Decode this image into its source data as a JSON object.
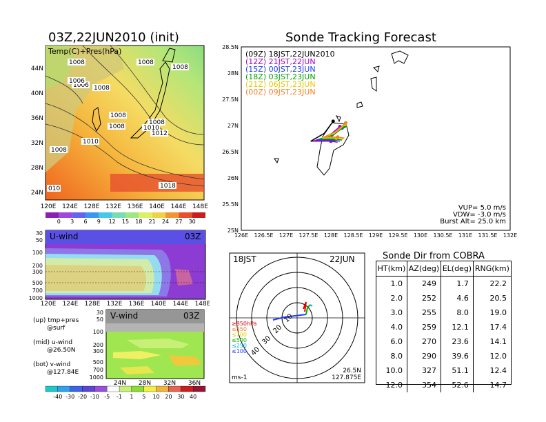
{
  "left_title": "03Z,22JUN2010 (init)",
  "right_title": "Sonde Tracking Forecast",
  "map": {
    "label": "Temp(C)+Pres(hPa)",
    "lat_ticks": [
      "44N",
      "40N",
      "36N",
      "32N",
      "28N",
      "24N"
    ],
    "lon_ticks": [
      "120E",
      "124E",
      "128E",
      "132E",
      "136E",
      "140E",
      "144E",
      "148E"
    ],
    "pressure_labels": [
      "1008",
      "1006",
      "1008",
      "1008",
      "1008",
      "1006",
      "1008",
      "1008",
      "1008",
      "1010",
      "1012",
      "1010",
      "1008",
      "1018",
      "010"
    ],
    "colorbar_ticks": [
      "0",
      "3",
      "6",
      "9",
      "12",
      "15",
      "18",
      "21",
      "24",
      "27",
      "30"
    ]
  },
  "uwind": {
    "label": "U-wind",
    "time": "03Z",
    "p_ticks": [
      "30",
      "50",
      "100",
      "200",
      "300",
      "500",
      "700",
      "1000"
    ],
    "lon_ticks": [
      "120E",
      "124E",
      "128E",
      "132E",
      "136E",
      "140E",
      "144E",
      "148E"
    ]
  },
  "vwind": {
    "label": "V-wind",
    "time": "03Z",
    "p_ticks": [
      "30",
      "50",
      "100",
      "200",
      "300",
      "500",
      "700",
      "1000"
    ],
    "lat_ticks": [
      "24N",
      "28N",
      "32N",
      "36N"
    ]
  },
  "notes": {
    "up": "(up) tmp+pres\n       @surf",
    "mid": "(mid) u-wind\n       @26.50N",
    "bot": "(bot) v-wind\n       @127.84E"
  },
  "wind_colorbar_ticks": [
    "-40",
    "-30",
    "-20",
    "-10",
    "-5",
    "-1",
    "1",
    "5",
    "10",
    "20",
    "30",
    "40"
  ],
  "track": {
    "lat_ticks": [
      "28.5N",
      "28N",
      "27.5N",
      "27N",
      "26.5N",
      "26N",
      "25.5N",
      "25N"
    ],
    "lon_ticks": [
      "126E",
      "126.5E",
      "127E",
      "127.5E",
      "128E",
      "128.5E",
      "129E",
      "129.5E",
      "130E",
      "130.5E",
      "131E",
      "131.5E",
      "132E"
    ],
    "legend": [
      {
        "text": "(09Z)  18JST,22JUN2010",
        "color": "#000000"
      },
      {
        "text": "(12Z)  21JST,22JUN",
        "color": "#a000c8"
      },
      {
        "text": "(15Z)  00JST,23JUN",
        "color": "#1e3cff"
      },
      {
        "text": "(18Z)  03JST,23JUN",
        "color": "#00a000"
      },
      {
        "text": "(21Z)  06JST,23JUN",
        "color": "#e6c800"
      },
      {
        "text": "(00Z)  09JST,23JUN",
        "color": "#f08228"
      }
    ],
    "params": [
      "VUP=  5.0  m/s",
      "VDW= -3.0  m/s",
      "Burst Alt=  25.0  km"
    ]
  },
  "polar": {
    "time_label": "18JST",
    "date_label": "22JUN",
    "unit": "ms-1",
    "location": [
      "26.5N",
      "127.875E"
    ],
    "ring_labels": [
      "10",
      "20",
      "30",
      "40"
    ],
    "legend": [
      {
        "text": "≥850hPa",
        "color": "#e60000"
      },
      {
        "text": "≤850",
        "color": "#f08228"
      },
      {
        "text": "≤700",
        "color": "#e6c800"
      },
      {
        "text": "≤500",
        "color": "#00b400"
      },
      {
        "text": "≤250",
        "color": "#00b4e6"
      },
      {
        "text": "≤100",
        "color": "#1e3cff"
      }
    ]
  },
  "table": {
    "title": "Sonde Dir from COBRA",
    "headers": [
      "HT(km)",
      "AZ(deg)",
      "EL(deg)",
      "RNG(km)"
    ],
    "rows": [
      [
        "1.0",
        "249",
        "1.7",
        "22.2"
      ],
      [
        "2.0",
        "252",
        "4.6",
        "20.5"
      ],
      [
        "3.0",
        "255",
        "8.0",
        "19.0"
      ],
      [
        "4.0",
        "259",
        "12.1",
        "17.4"
      ],
      [
        "6.0",
        "270",
        "23.6",
        "14.1"
      ],
      [
        "8.0",
        "290",
        "39.6",
        "12.0"
      ],
      [
        "10.0",
        "327",
        "51.1",
        "12.4"
      ],
      [
        "12.0",
        "354",
        "52.6",
        "14.7"
      ]
    ]
  },
  "chart_data": [
    {
      "type": "line",
      "series": [
        {
          "name": "(09Z)  18JST,22JUN2010",
          "x": [
            128.05,
            127.85,
            127.55,
            128.0,
            128.1
          ],
          "y": [
            27.08,
            26.85,
            26.7,
            26.72,
            26.7
          ]
        },
        {
          "name": "(12Z)  21JST,22JUN",
          "x": [
            128.2,
            127.95,
            127.6,
            128.0,
            128.15
          ],
          "y": [
            26.98,
            26.8,
            26.7,
            26.7,
            26.68
          ]
        },
        {
          "name": "(15Z)  00JST,23JUN",
          "x": [
            128.25,
            128.0,
            127.7,
            128.05,
            128.2
          ],
          "y": [
            26.95,
            26.78,
            26.72,
            26.72,
            26.7
          ]
        },
        {
          "name": "(18Z)  03JST,23JUN",
          "x": [
            128.3,
            128.05,
            127.75,
            128.1,
            128.25
          ],
          "y": [
            26.98,
            26.82,
            26.74,
            26.74,
            26.72
          ]
        },
        {
          "name": "(21Z)  06JST,23JUN",
          "x": [
            128.32,
            128.08,
            127.8,
            128.12,
            128.28
          ],
          "y": [
            27.02,
            26.85,
            26.76,
            26.76,
            26.74
          ]
        },
        {
          "name": "(00Z)  09JST,23JUN",
          "x": [
            128.33,
            128.1,
            127.85,
            128.15,
            128.3
          ],
          "y": [
            27.05,
            26.88,
            26.78,
            26.78,
            26.76
          ]
        }
      ],
      "xlim": [
        126,
        132
      ],
      "ylim": [
        25,
        28.5
      ]
    },
    {
      "type": "table",
      "headers": [
        "HT(km)",
        "AZ(deg)",
        "EL(deg)",
        "RNG(km)"
      ],
      "rows": [
        [
          "1.0",
          "249",
          "1.7",
          "22.2"
        ],
        [
          "2.0",
          "252",
          "4.6",
          "20.5"
        ],
        [
          "3.0",
          "255",
          "8.0",
          "19.0"
        ],
        [
          "4.0",
          "259",
          "12.1",
          "17.4"
        ],
        [
          "6.0",
          "270",
          "23.6",
          "14.1"
        ],
        [
          "8.0",
          "290",
          "39.6",
          "12.0"
        ],
        [
          "10.0",
          "327",
          "51.1",
          "12.4"
        ],
        [
          "12.0",
          "354",
          "52.6",
          "14.7"
        ]
      ]
    }
  ]
}
